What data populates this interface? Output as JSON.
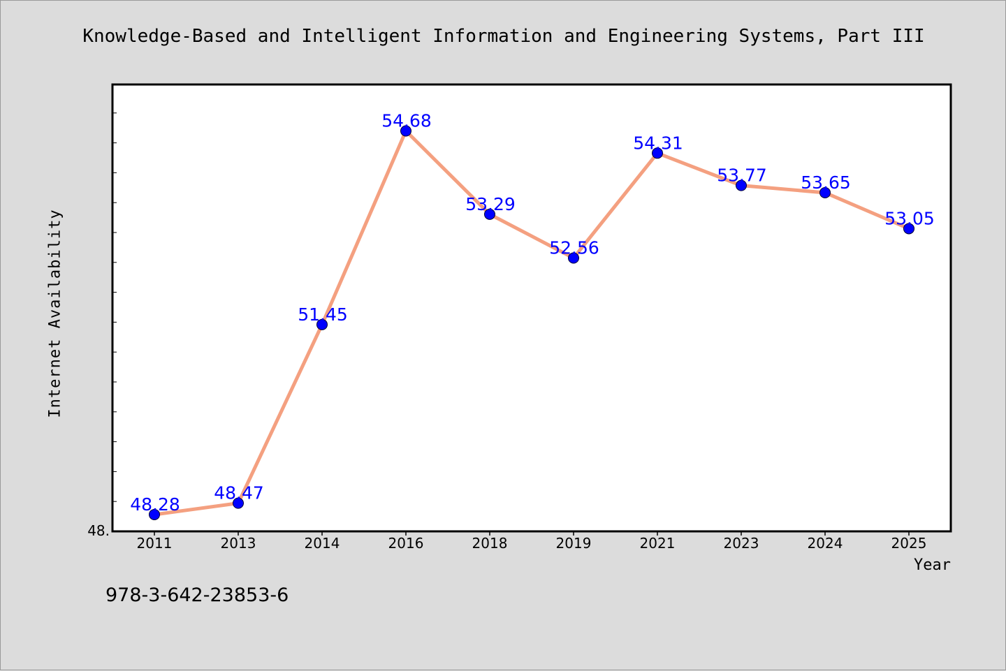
{
  "chart_data": {
    "type": "line",
    "title": "Knowledge-Based and Intelligent Information and Engineering Systems, Part III",
    "xlabel": "Year",
    "ylabel": "Internet Availability",
    "categories": [
      "2011",
      "2013",
      "2014",
      "2016",
      "2018",
      "2019",
      "2021",
      "2023",
      "2024",
      "2025"
    ],
    "values": [
      48.28,
      48.47,
      51.45,
      54.68,
      53.29,
      52.56,
      54.31,
      53.77,
      53.65,
      53.05
    ],
    "data_labels": [
      "48.28",
      "48.47",
      "51.45",
      "54.68",
      "53.29",
      "52.56",
      "54.31",
      "53.77",
      "53.65",
      "53.05"
    ],
    "y_tick_label": "48.",
    "ylim": [
      48.0,
      55.5
    ],
    "grid": false,
    "line_color": "#f4a080",
    "marker_color": "#0000ff",
    "label_color": "#0000ff",
    "plot_background": "#ffffff",
    "page_background": "#dcdcdc"
  },
  "footer": {
    "isbn": "978-3-642-23853-6"
  }
}
